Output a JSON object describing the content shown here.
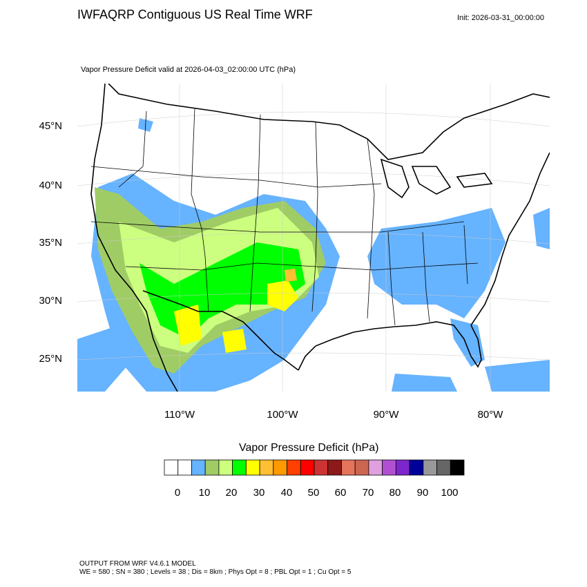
{
  "header": {
    "title": "IWFAQRP Contiguous US Real Time WRF",
    "init": "Init: 2026-03-31_00:00:00",
    "subtitle": "Vapor Pressure Deficit valid at 2026-04-03_02:00:00 UTC   (hPa)"
  },
  "map": {
    "lat_labels": [
      "45°N",
      "40°N",
      "35°N",
      "30°N",
      "25°N"
    ],
    "lon_labels": [
      "110°W",
      "100°W",
      "90°W",
      "80°W"
    ],
    "ocean_color": "#ffffff",
    "land_color": "#ffffff",
    "border_color": "#000000"
  },
  "legend": {
    "title": "Vapor Pressure Deficit  (hPa)",
    "colors": [
      "#ffffff",
      "#ffffff",
      "#66b3ff",
      "#a0cc66",
      "#ccff80",
      "#00ff00",
      "#ffff00",
      "#ffbf33",
      "#ff9900",
      "#ff4000",
      "#ff0000",
      "#cc3333",
      "#8c1a1a",
      "#e6735c",
      "#cc6650",
      "#e0a0e0",
      "#b050d0",
      "#7d26cd",
      "#000099",
      "#999999",
      "#666666",
      "#000000"
    ],
    "labels": [
      "0",
      "10",
      "20",
      "30",
      "40",
      "50",
      "60",
      "70",
      "80",
      "90",
      "100"
    ]
  },
  "footer": {
    "line1": "OUTPUT FROM WRF V4.6.1 MODEL",
    "line2": "WE = 580 ; SN = 380 ; Levels = 38 ; Dis = 8km ; Phys Opt = 8 ; PBL Opt = 1 ; Cu Opt = 5"
  }
}
